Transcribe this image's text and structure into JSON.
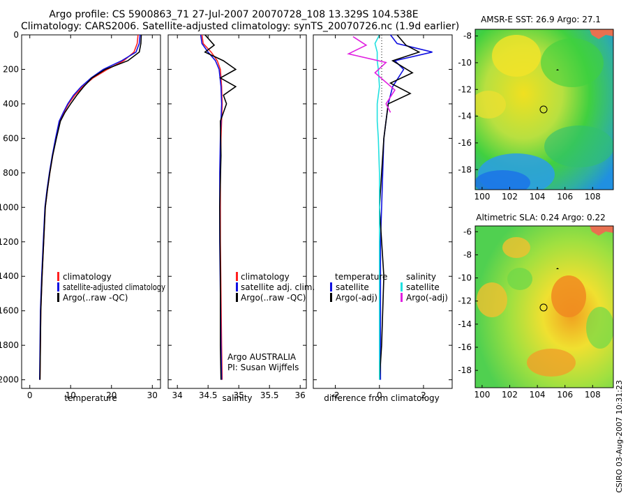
{
  "header": {
    "line1": "Argo profile: CS 5900863_71 27-Jul-2007 20070728_108 13.329S 104.538E",
    "line2": "Climatology: CARS2006. Satellite-adjusted climatology: synTS_20070726.nc (1.9d earlier)"
  },
  "stamp": "CSIRO 03-Aug-2007 10:31:23",
  "colors": {
    "climatology": "#ff2020",
    "satellite": "#1010e0",
    "argo": "#000000",
    "salinity_satellite": "#20e0e0",
    "salinity_argo": "#e020e0"
  },
  "chart_data": [
    {
      "type": "line",
      "xlabel": "temperature",
      "ylabel": "",
      "xlim": [
        -2,
        32
      ],
      "ylim": [
        2050,
        0
      ],
      "xticks": [
        "0",
        "10",
        "20",
        "30"
      ],
      "xtick_values": [
        0,
        10,
        20,
        30
      ],
      "yticks": [
        "0",
        "200",
        "400",
        "600",
        "800",
        "1000",
        "1200",
        "1400",
        "1600",
        "1800",
        "2000"
      ],
      "ytick_values": [
        0,
        200,
        400,
        600,
        800,
        1000,
        1200,
        1400,
        1600,
        1800,
        2000
      ],
      "legend": [
        "climatology",
        "satellite-adjusted climatology",
        "Argo(..raw -QC)"
      ],
      "series": [
        {
          "name": "climatology",
          "color": "#ff2020",
          "x": [
            26.5,
            26.3,
            25.5,
            23.0,
            19.0,
            15.5,
            13.0,
            11.0,
            9.5,
            8.3,
            7.3,
            6.4,
            5.6,
            4.9,
            4.3,
            3.8,
            3.4,
            3.0,
            2.7,
            2.5
          ],
          "y": [
            0,
            50,
            100,
            150,
            200,
            250,
            300,
            350,
            400,
            450,
            500,
            600,
            700,
            800,
            900,
            1000,
            1200,
            1400,
            1600,
            2000
          ]
        },
        {
          "name": "satellite-adjusted climatology",
          "color": "#1010e0",
          "x": [
            27.0,
            26.8,
            26.0,
            22.5,
            18.0,
            15.0,
            12.6,
            10.7,
            9.3,
            8.2,
            7.2,
            6.3,
            5.5,
            4.8,
            4.2,
            3.7,
            3.3,
            2.9,
            2.6,
            2.4
          ],
          "y": [
            0,
            50,
            100,
            150,
            200,
            250,
            300,
            350,
            400,
            450,
            500,
            600,
            700,
            800,
            900,
            1000,
            1200,
            1400,
            1600,
            2000
          ]
        },
        {
          "name": "Argo(..raw -QC)",
          "color": "#000000",
          "x": [
            27.3,
            27.2,
            26.8,
            24.0,
            18.5,
            15.2,
            13.2,
            11.5,
            10.0,
            8.6,
            7.5,
            6.5,
            5.6,
            4.9,
            4.3,
            3.8,
            3.4,
            3.0,
            2.7,
            2.5
          ],
          "y": [
            0,
            50,
            100,
            150,
            200,
            250,
            300,
            350,
            400,
            450,
            500,
            600,
            700,
            800,
            900,
            1000,
            1200,
            1400,
            1600,
            2000
          ]
        }
      ]
    },
    {
      "type": "line",
      "xlabel": "salinity",
      "ylabel": "",
      "xlim": [
        33.85,
        36.1
      ],
      "ylim": [
        2050,
        0
      ],
      "xticks": [
        "34",
        "34.5",
        "35",
        "35.5",
        "36"
      ],
      "xtick_values": [
        34,
        34.5,
        35,
        35.5,
        36
      ],
      "legend": [
        "climatology",
        "satellite adj. clim.",
        "Argo(..raw -QC)"
      ],
      "annotations": [
        "Argo AUSTRALIA",
        "PI: Susan Wijffels"
      ],
      "series": [
        {
          "name": "climatology",
          "color": "#ff2020",
          "x": [
            34.4,
            34.42,
            34.55,
            34.65,
            34.7,
            34.72,
            34.73,
            34.72,
            34.71,
            34.7,
            34.7,
            34.7,
            34.71,
            34.72,
            34.73
          ],
          "y": [
            0,
            50,
            100,
            150,
            200,
            300,
            400,
            500,
            600,
            800,
            1000,
            1200,
            1500,
            1800,
            2000
          ]
        },
        {
          "name": "satellite adj. clim.",
          "color": "#1010e0",
          "x": [
            34.38,
            34.4,
            34.5,
            34.62,
            34.68,
            34.71,
            34.72,
            34.71,
            34.7,
            34.69,
            34.69,
            34.69,
            34.7,
            34.71,
            34.72
          ],
          "y": [
            0,
            50,
            100,
            150,
            200,
            300,
            400,
            500,
            600,
            800,
            1000,
            1200,
            1500,
            1800,
            2000
          ]
        },
        {
          "name": "Argo(..raw -QC)",
          "color": "#000000",
          "x": [
            34.45,
            34.6,
            34.45,
            34.75,
            34.95,
            34.7,
            34.95,
            34.75,
            34.8,
            34.7,
            34.71,
            34.69,
            34.7,
            34.7,
            34.71
          ],
          "y": [
            0,
            60,
            100,
            150,
            200,
            250,
            300,
            350,
            400,
            500,
            700,
            1000,
            1400,
            1800,
            2000
          ]
        }
      ]
    },
    {
      "type": "line",
      "xlabel": "difference from climatology",
      "ylabel": "",
      "xlim": [
        -3,
        3.3
      ],
      "ylim": [
        2050,
        0
      ],
      "xticks": [
        "-2",
        "0",
        "2"
      ],
      "xtick_values": [
        -2,
        0,
        2
      ],
      "legend_left_title": "temperature",
      "legend_right_title": "salinity",
      "legend": [
        "satellite",
        "Argo(-adj)",
        "satellite",
        "Argo(-adj)"
      ],
      "series": [
        {
          "name": "satellite",
          "color": "#1010e0",
          "x": [
            0.5,
            0.8,
            2.4,
            0.7,
            1.1,
            0.6,
            0.4,
            0.3,
            0.2,
            0.15,
            0.1,
            0.05,
            0.05,
            0.05,
            0.05
          ],
          "y": [
            0,
            50,
            100,
            150,
            200,
            300,
            400,
            500,
            600,
            800,
            1000,
            1200,
            1500,
            1800,
            2000
          ]
        },
        {
          "name": "Argo(-adj)",
          "color": "#000000",
          "x": [
            0.8,
            1.2,
            1.8,
            0.6,
            1.5,
            0.5,
            1.4,
            0.4,
            0.3,
            0.2,
            0.1,
            0.0,
            0.2,
            0.1,
            0.0
          ],
          "y": [
            0,
            60,
            100,
            150,
            220,
            280,
            340,
            400,
            500,
            600,
            800,
            1000,
            1400,
            1800,
            2000
          ]
        },
        {
          "name": "satellite",
          "color": "#20e0e0",
          "x": [
            0.0,
            -0.2,
            -0.1,
            -0.1,
            -0.05,
            0.0,
            -0.1,
            -0.1,
            -0.05,
            0.0,
            0.0,
            0.0,
            0.0,
            0.0,
            0.0
          ],
          "y": [
            0,
            50,
            100,
            150,
            200,
            300,
            400,
            500,
            600,
            800,
            1000,
            1200,
            1500,
            1800,
            2000
          ]
        },
        {
          "name": "Argo(-adj)",
          "color": "#e020e0",
          "x": [
            -1.2,
            -0.6,
            -1.4,
            0.3,
            -0.2,
            0.7,
            0.3,
            0.5
          ],
          "y": [
            10,
            60,
            110,
            160,
            220,
            320,
            400,
            450
          ]
        }
      ]
    },
    {
      "type": "heatmap",
      "title": "AMSR-E SST: 26.9  Argo: 27.1",
      "xlim": [
        99.5,
        109.5
      ],
      "ylim": [
        -19.5,
        -7.5
      ],
      "xticks": [
        "100",
        "102",
        "104",
        "106",
        "108"
      ],
      "xtick_values": [
        100,
        102,
        104,
        106,
        108
      ],
      "yticks": [
        "-8",
        "-10",
        "-12",
        "-14",
        "-16",
        "-18"
      ],
      "ytick_values": [
        -8,
        -10,
        -12,
        -14,
        -16,
        -18
      ],
      "marker": {
        "lon": 104.54,
        "lat": -13.33
      }
    },
    {
      "type": "heatmap",
      "title": "Altimetric SLA: 0.24  Argo: 0.22",
      "xlim": [
        99.5,
        109.5
      ],
      "ylim": [
        -19.5,
        -5.5
      ],
      "xticks": [
        "100",
        "102",
        "104",
        "106",
        "108"
      ],
      "xtick_values": [
        100,
        102,
        104,
        106,
        108
      ],
      "yticks": [
        "-6",
        "-8",
        "-10",
        "-12",
        "-14",
        "-16",
        "-18"
      ],
      "ytick_values": [
        -6,
        -8,
        -10,
        -12,
        -14,
        -16,
        -18
      ],
      "marker": {
        "lon": 104.54,
        "lat": -13.33
      }
    }
  ]
}
